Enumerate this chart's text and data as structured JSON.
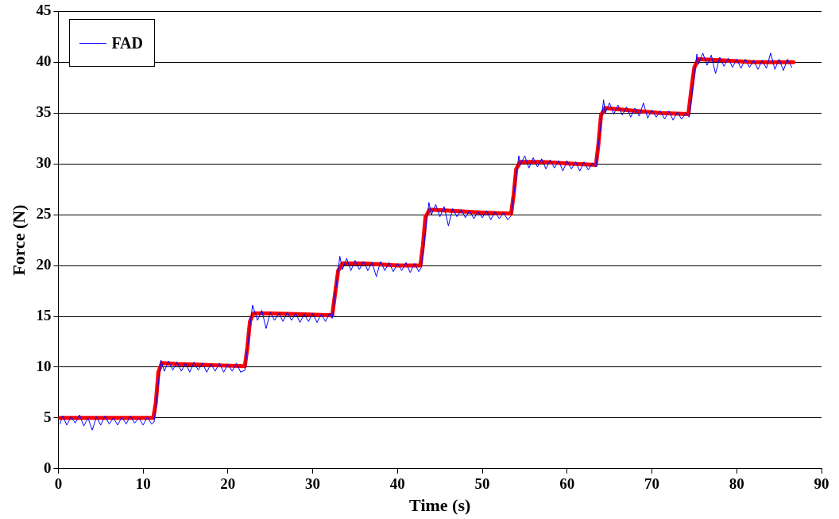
{
  "chart_data": {
    "type": "line",
    "xlabel": "Time (s)",
    "ylabel": "Force (N)",
    "xlim": [
      0,
      90
    ],
    "xticks": [
      0,
      10,
      20,
      30,
      40,
      50,
      60,
      70,
      80,
      90
    ],
    "ylim": [
      0,
      45
    ],
    "yticks": [
      0,
      5,
      10,
      15,
      20,
      25,
      30,
      35,
      40,
      45
    ],
    "grid": "y",
    "legend": "top left",
    "marker": "none",
    "line_style": "solid",
    "series": [
      {
        "name": "FAD",
        "color": "#0000ff",
        "x": [
          0.2,
          0.5,
          1,
          1.5,
          2,
          2.5,
          3,
          3.5,
          4,
          4.5,
          5,
          5.5,
          6,
          6.5,
          7,
          7.5,
          8,
          8.5,
          9,
          9.5,
          10,
          10.5,
          11,
          11.3,
          12.1,
          12.5,
          13,
          13.5,
          14,
          14.5,
          15,
          15.5,
          16,
          16.5,
          17,
          17.5,
          18,
          18.5,
          19,
          19.5,
          20,
          20.5,
          21,
          21.5,
          22,
          22.9,
          23.5,
          24,
          24.5,
          25,
          25.5,
          26,
          26.5,
          27,
          27.5,
          28,
          28.5,
          29,
          29.5,
          30,
          30.5,
          31,
          31.5,
          32,
          32.3,
          33.2,
          33.5,
          34,
          34.5,
          35,
          35.5,
          36,
          36.5,
          37,
          37.5,
          38,
          38.5,
          39,
          39.5,
          40,
          40.5,
          41,
          41.5,
          42,
          42.5,
          42.8,
          43.7,
          44,
          44.5,
          45,
          45.5,
          46,
          46.5,
          47,
          47.5,
          48,
          48.5,
          49,
          49.5,
          50,
          50.5,
          51,
          51.5,
          52,
          52.5,
          53,
          53.4,
          54.3,
          54.5,
          55,
          55.5,
          56,
          56.5,
          57,
          57.5,
          58,
          58.5,
          59,
          59.5,
          60,
          60.5,
          61,
          61.5,
          62,
          62.5,
          63,
          63.4,
          64.3,
          64.5,
          65,
          65.5,
          66,
          66.5,
          67,
          67.5,
          68,
          68.5,
          69,
          69.5,
          70,
          70.5,
          71,
          71.5,
          72,
          72.5,
          73,
          73.5,
          74,
          74.4,
          75.3,
          75.5,
          76,
          76.5,
          77,
          77.5,
          78,
          78.5,
          79,
          79.5,
          80,
          80.5,
          81,
          81.5,
          82,
          82.5,
          83,
          83.5,
          84,
          84.5,
          85,
          85.5,
          86,
          86.5
        ],
        "values": [
          4.4,
          5.2,
          4.3,
          5.1,
          4.5,
          5.3,
          4.2,
          5.0,
          3.8,
          5.1,
          4.3,
          5.2,
          4.4,
          5.0,
          4.3,
          5.1,
          4.4,
          5.2,
          4.5,
          5.0,
          4.3,
          5.1,
          4.4,
          4.6,
          10.7,
          9.6,
          10.6,
          9.7,
          10.5,
          9.6,
          10.4,
          9.5,
          10.5,
          9.7,
          10.4,
          9.5,
          10.3,
          9.6,
          10.4,
          9.5,
          10.3,
          9.6,
          10.4,
          9.5,
          9.7,
          16.1,
          14.6,
          15.6,
          13.8,
          15.4,
          14.6,
          15.3,
          14.5,
          15.4,
          14.6,
          15.3,
          14.4,
          15.2,
          14.5,
          15.3,
          14.4,
          15.2,
          14.5,
          15.3,
          14.8,
          20.9,
          19.6,
          20.7,
          19.5,
          20.5,
          19.6,
          20.4,
          19.5,
          20.3,
          18.9,
          20.4,
          19.5,
          20.3,
          19.4,
          20.2,
          19.5,
          20.3,
          19.3,
          20.2,
          19.4,
          19.8,
          26.2,
          25.0,
          26.0,
          24.8,
          25.8,
          23.9,
          25.6,
          24.8,
          25.5,
          24.7,
          25.4,
          24.6,
          25.3,
          24.7,
          25.4,
          24.5,
          25.3,
          24.6,
          25.2,
          24.5,
          24.9,
          30.8,
          29.9,
          30.8,
          29.6,
          30.6,
          29.7,
          30.5,
          29.5,
          30.4,
          29.6,
          30.3,
          29.3,
          30.3,
          29.5,
          30.2,
          29.3,
          30.2,
          29.4,
          30.1,
          29.7,
          36.3,
          35.0,
          36.0,
          34.9,
          35.8,
          34.8,
          35.6,
          34.6,
          35.5,
          34.7,
          36.0,
          34.5,
          35.3,
          34.6,
          35.2,
          34.4,
          35.2,
          34.3,
          35.1,
          34.4,
          35.0,
          34.6,
          40.8,
          39.8,
          40.9,
          39.7,
          40.7,
          38.9,
          40.5,
          39.6,
          40.4,
          39.5,
          40.3,
          39.4,
          40.3,
          39.5,
          40.2,
          39.3,
          40.2,
          39.4,
          40.9,
          39.3,
          40.3,
          39.2,
          40.3,
          39.5
        ]
      },
      {
        "color": "#ff0000",
        "x": [
          0.2,
          11.2,
          11.5,
          11.8,
          12.2,
          14,
          18,
          22,
          22.3,
          22.6,
          23,
          25,
          29,
          32.3,
          32.6,
          33,
          33.5,
          36,
          40,
          42.7,
          43,
          43.3,
          43.8,
          46,
          50,
          53.4,
          53.7,
          54,
          54.5,
          57,
          61,
          63.4,
          63.7,
          64,
          64.5,
          67,
          71,
          74.3,
          74.6,
          75,
          75.5,
          78,
          82,
          86.7
        ],
        "values": [
          5.0,
          5.0,
          6.5,
          9.5,
          10.4,
          10.3,
          10.2,
          10.1,
          12,
          14.5,
          15.3,
          15.3,
          15.2,
          15.1,
          17,
          19.5,
          20.2,
          20.2,
          20.0,
          20.0,
          22,
          24.8,
          25.5,
          25.4,
          25.2,
          25.1,
          27,
          29.5,
          30.2,
          30.2,
          30.0,
          29.9,
          32,
          34.8,
          35.5,
          35.3,
          35.0,
          34.9,
          37,
          39.5,
          40.3,
          40.2,
          40.0,
          40.0
        ]
      }
    ]
  }
}
